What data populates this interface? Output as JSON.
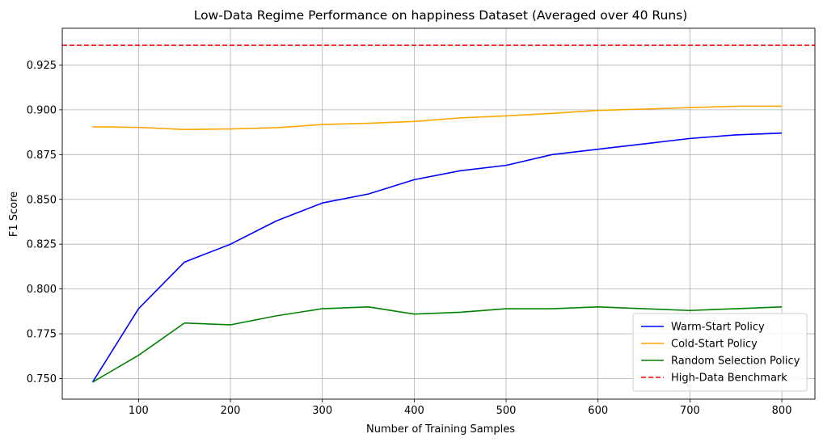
{
  "chart_data": {
    "type": "line",
    "title": "Low-Data Regime Performance on happiness Dataset (Averaged over 40 Runs)",
    "xlabel": "Number of Training Samples",
    "ylabel": "F1 Score",
    "xlim": [
      17,
      836
    ],
    "ylim": [
      0.7385,
      0.9455
    ],
    "xticks": [
      100,
      200,
      300,
      400,
      500,
      600,
      700,
      800
    ],
    "yticks": [
      0.75,
      0.775,
      0.8,
      0.825,
      0.85,
      0.875,
      0.9,
      0.925
    ],
    "grid": true,
    "legend_position": "bottom-right",
    "x": [
      50,
      100,
      150,
      200,
      250,
      300,
      350,
      400,
      450,
      500,
      550,
      600,
      650,
      700,
      750,
      800
    ],
    "series": [
      {
        "name": "Warm-Start Policy",
        "color": "#0000ff",
        "style": "solid",
        "values": [
          0.748,
          0.789,
          0.815,
          0.825,
          0.838,
          0.848,
          0.853,
          0.861,
          0.866,
          0.869,
          0.875,
          0.878,
          0.881,
          0.884,
          0.886,
          0.887
        ]
      },
      {
        "name": "Cold-Start Policy",
        "color": "#ffa500",
        "style": "solid",
        "values": [
          0.8905,
          0.8902,
          0.889,
          0.8893,
          0.89,
          0.8918,
          0.8925,
          0.8935,
          0.8955,
          0.8966,
          0.898,
          0.8997,
          0.9004,
          0.9012,
          0.902,
          0.902
        ]
      },
      {
        "name": "Random Selection Policy",
        "color": "#008000",
        "style": "solid",
        "values": [
          0.748,
          0.763,
          0.781,
          0.78,
          0.785,
          0.789,
          0.79,
          0.786,
          0.787,
          0.789,
          0.789,
          0.79,
          0.789,
          0.788,
          0.789,
          0.79
        ]
      },
      {
        "name": "High-Data Benchmark",
        "color": "#ff0000",
        "style": "dashed",
        "horizontal": true,
        "value": 0.936
      }
    ]
  }
}
